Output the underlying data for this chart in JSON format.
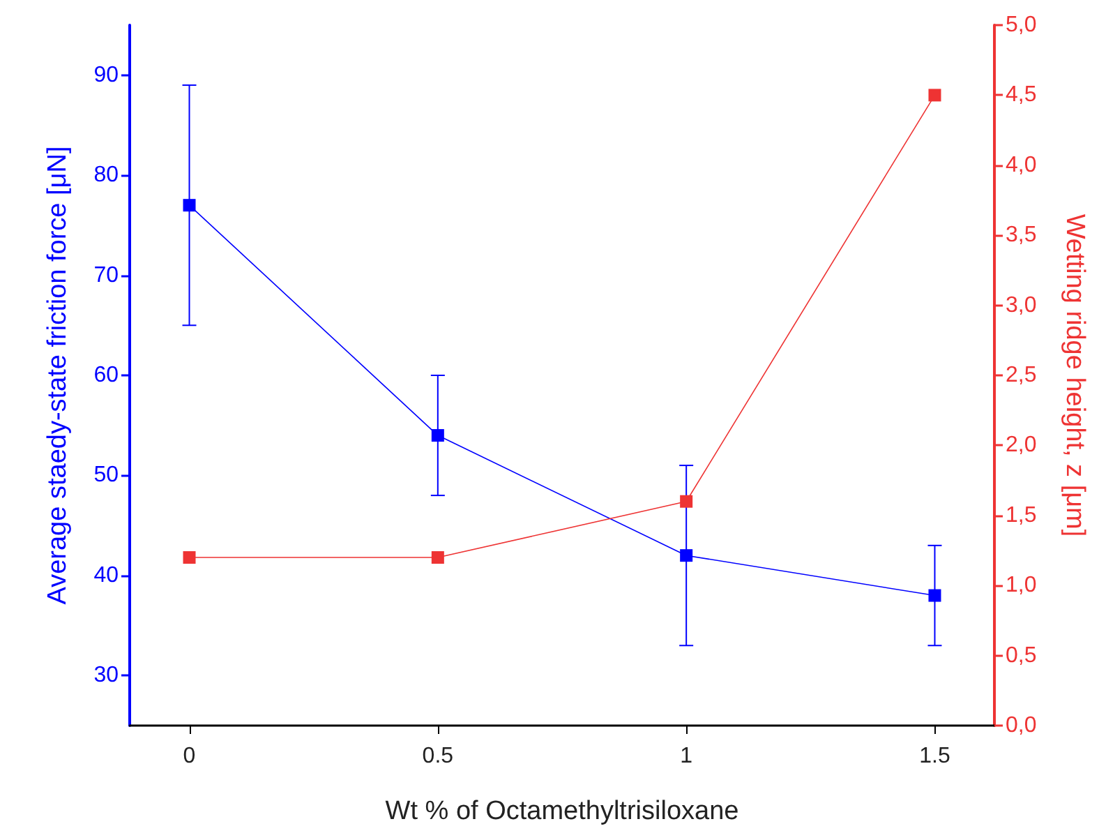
{
  "chart_data": {
    "type": "line",
    "xlabel": "Wt % of Octamethyltrisiloxane",
    "ylabel": "Average staedy-state friction force [μN]",
    "y2label": "Wetting ridge height, z [μm]",
    "x": [
      0,
      0.5,
      1,
      1.5
    ],
    "series": [
      {
        "color": "#0000ff",
        "values": [
          77,
          54,
          42,
          38
        ],
        "errors": [
          12,
          6,
          9,
          5
        ]
      },
      {
        "color": "#ee3333",
        "axis": "y2",
        "values": [
          1.2,
          1.2,
          1.6,
          4.5
        ]
      }
    ],
    "xlim": [
      -0.12,
      1.62
    ],
    "xticks": [
      0,
      0.5,
      1,
      1.5
    ],
    "ylim": [
      25,
      95
    ],
    "yticks": [
      30,
      40,
      50,
      60,
      70,
      80,
      90
    ],
    "y2lim": [
      0,
      5
    ],
    "y2ticks": [
      {
        "value": 0,
        "label": "0,0"
      },
      {
        "value": 0.5,
        "label": "0,5"
      },
      {
        "value": 1,
        "label": "1,0"
      },
      {
        "value": 1.5,
        "label": "1,5"
      },
      {
        "value": 2,
        "label": "2,0"
      },
      {
        "value": 2.5,
        "label": "2,5"
      },
      {
        "value": 3,
        "label": "3,0"
      },
      {
        "value": 3.5,
        "label": "3,5"
      },
      {
        "value": 4,
        "label": "4,0"
      },
      {
        "value": 4.5,
        "label": "4,5"
      },
      {
        "value": 5,
        "label": "5,0"
      }
    ],
    "marker": "square",
    "line_style": "solid",
    "grid": false
  }
}
